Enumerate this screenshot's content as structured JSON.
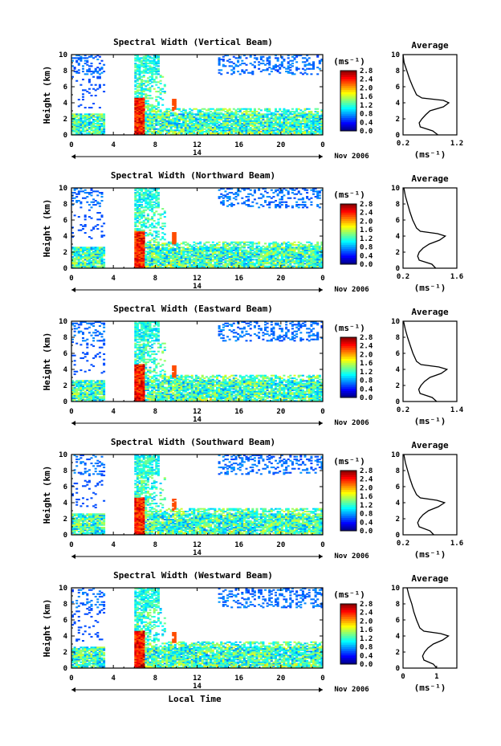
{
  "chart_data": [
    {
      "type": "heatmap",
      "title": "Spectral Width (Vertical Beam)",
      "ylabel": "Height (km)",
      "xlabel": "",
      "x_ticks": [
        "0",
        "4",
        "8",
        "12",
        "16",
        "20",
        "0"
      ],
      "y_ticks": [
        "0",
        "2",
        "4",
        "6",
        "8",
        "10"
      ],
      "xlim": [
        0,
        24
      ],
      "ylim": [
        0,
        10
      ],
      "day_label": "14",
      "date_label": "Nov 2006",
      "colorbar": {
        "unit": "(ms⁻¹)",
        "ticks": [
          "2.8",
          "2.4",
          "2.0",
          "1.6",
          "1.2",
          "0.8",
          "0.4",
          "0.0"
        ],
        "range": [
          0,
          2.8
        ]
      },
      "average": {
        "title": "Average",
        "unit": "(ms⁻¹)",
        "x_ticks": [
          "0.2",
          "1.2"
        ],
        "xlim": [
          0.2,
          1.2
        ],
        "profile": [
          [
            0.0,
            0.85
          ],
          [
            0.5,
            0.75
          ],
          [
            1.0,
            0.52
          ],
          [
            1.5,
            0.5
          ],
          [
            2.0,
            0.55
          ],
          [
            2.5,
            0.62
          ],
          [
            3.0,
            0.7
          ],
          [
            3.5,
            0.95
          ],
          [
            4.0,
            1.05
          ],
          [
            4.3,
            0.95
          ],
          [
            4.6,
            0.55
          ],
          [
            5.0,
            0.45
          ],
          [
            6.0,
            0.38
          ],
          [
            7.0,
            0.32
          ],
          [
            8.0,
            0.27
          ],
          [
            9.0,
            0.22
          ],
          [
            10.0,
            0.2
          ]
        ]
      }
    },
    {
      "type": "heatmap",
      "title": "Spectral Width (Northward Beam)",
      "ylabel": "Height (km)",
      "xlabel": "",
      "x_ticks": [
        "0",
        "4",
        "8",
        "12",
        "16",
        "20",
        "0"
      ],
      "y_ticks": [
        "0",
        "2",
        "4",
        "6",
        "8",
        "10"
      ],
      "xlim": [
        0,
        24
      ],
      "ylim": [
        0,
        10
      ],
      "day_label": "14",
      "date_label": "Nov 2006",
      "colorbar": {
        "unit": "(ms⁻¹)",
        "ticks": [
          "2.8",
          "2.4",
          "2.0",
          "1.6",
          "1.2",
          "0.8",
          "0.4",
          "0.0"
        ],
        "range": [
          0,
          2.8
        ]
      },
      "average": {
        "title": "Average",
        "unit": "(ms⁻¹)",
        "x_ticks": [
          "0.2",
          "1.6"
        ],
        "xlim": [
          0.2,
          1.6
        ],
        "profile": [
          [
            0.0,
            1.05
          ],
          [
            0.5,
            0.95
          ],
          [
            1.0,
            0.62
          ],
          [
            1.5,
            0.58
          ],
          [
            2.0,
            0.62
          ],
          [
            2.5,
            0.72
          ],
          [
            3.0,
            0.88
          ],
          [
            3.5,
            1.15
          ],
          [
            4.0,
            1.3
          ],
          [
            4.3,
            1.1
          ],
          [
            4.6,
            0.65
          ],
          [
            5.0,
            0.55
          ],
          [
            6.0,
            0.45
          ],
          [
            7.0,
            0.38
          ],
          [
            8.0,
            0.32
          ],
          [
            9.0,
            0.26
          ],
          [
            10.0,
            0.22
          ]
        ]
      }
    },
    {
      "type": "heatmap",
      "title": "Spectral Width (Eastward Beam)",
      "ylabel": "Height (km)",
      "xlabel": "",
      "x_ticks": [
        "0",
        "4",
        "8",
        "12",
        "16",
        "20",
        "0"
      ],
      "y_ticks": [
        "0",
        "2",
        "4",
        "6",
        "8",
        "10"
      ],
      "xlim": [
        0,
        24
      ],
      "ylim": [
        0,
        10
      ],
      "day_label": "14",
      "date_label": "Nov 2006",
      "colorbar": {
        "unit": "(ms⁻¹)",
        "ticks": [
          "2.8",
          "2.4",
          "2.0",
          "1.6",
          "1.2",
          "0.8",
          "0.4",
          "0.0"
        ],
        "range": [
          0,
          2.8
        ]
      },
      "average": {
        "title": "Average",
        "unit": "(ms⁻¹)",
        "x_ticks": [
          "0.2",
          "1.4"
        ],
        "xlim": [
          0.2,
          1.4
        ],
        "profile": [
          [
            0.0,
            0.95
          ],
          [
            0.5,
            0.85
          ],
          [
            1.0,
            0.58
          ],
          [
            1.5,
            0.55
          ],
          [
            2.0,
            0.6
          ],
          [
            2.5,
            0.68
          ],
          [
            3.0,
            0.8
          ],
          [
            3.5,
            1.05
          ],
          [
            4.0,
            1.18
          ],
          [
            4.3,
            1.0
          ],
          [
            4.6,
            0.6
          ],
          [
            5.0,
            0.5
          ],
          [
            6.0,
            0.42
          ],
          [
            7.0,
            0.36
          ],
          [
            8.0,
            0.3
          ],
          [
            9.0,
            0.25
          ],
          [
            10.0,
            0.21
          ]
        ]
      }
    },
    {
      "type": "heatmap",
      "title": "Spectral Width (Southward Beam)",
      "ylabel": "Height (km)",
      "xlabel": "",
      "x_ticks": [
        "0",
        "4",
        "8",
        "12",
        "16",
        "20",
        "0"
      ],
      "y_ticks": [
        "0",
        "2",
        "4",
        "6",
        "8",
        "10"
      ],
      "xlim": [
        0,
        24
      ],
      "ylim": [
        0,
        10
      ],
      "day_label": "14",
      "date_label": "Nov 2006",
      "colorbar": {
        "unit": "(ms⁻¹)",
        "ticks": [
          "2.8",
          "2.4",
          "2.0",
          "1.6",
          "1.2",
          "0.8",
          "0.4",
          "0.0"
        ],
        "range": [
          0,
          2.8
        ]
      },
      "average": {
        "title": "Average",
        "unit": "(ms⁻¹)",
        "x_ticks": [
          "0.2",
          "1.6"
        ],
        "xlim": [
          0.2,
          1.6
        ],
        "profile": [
          [
            0.0,
            1.0
          ],
          [
            0.5,
            0.9
          ],
          [
            1.0,
            0.62
          ],
          [
            1.5,
            0.58
          ],
          [
            2.0,
            0.63
          ],
          [
            2.5,
            0.72
          ],
          [
            3.0,
            0.86
          ],
          [
            3.5,
            1.12
          ],
          [
            4.0,
            1.28
          ],
          [
            4.3,
            1.08
          ],
          [
            4.6,
            0.65
          ],
          [
            5.0,
            0.55
          ],
          [
            6.0,
            0.45
          ],
          [
            7.0,
            0.38
          ],
          [
            8.0,
            0.32
          ],
          [
            9.0,
            0.26
          ],
          [
            10.0,
            0.22
          ]
        ]
      }
    },
    {
      "type": "heatmap",
      "title": "Spectral Width (Westward Beam)",
      "ylabel": "Height (km)",
      "xlabel": "Local Time",
      "x_ticks": [
        "0",
        "4",
        "8",
        "12",
        "16",
        "20",
        "0"
      ],
      "y_ticks": [
        "0",
        "2",
        "4",
        "6",
        "8",
        "10"
      ],
      "xlim": [
        0,
        24
      ],
      "ylim": [
        0,
        10
      ],
      "day_label": "14",
      "date_label": "Nov 2006",
      "colorbar": {
        "unit": "(ms⁻¹)",
        "ticks": [
          "2.8",
          "2.4",
          "2.0",
          "1.6",
          "1.2",
          "0.8",
          "0.4",
          "0.0"
        ],
        "range": [
          0,
          2.8
        ]
      },
      "average": {
        "title": "Average",
        "unit": "(ms⁻¹)",
        "x_ticks": [
          "0",
          "1"
        ],
        "xlim": [
          0,
          1.6
        ],
        "profile": [
          [
            0.0,
            1.0
          ],
          [
            0.5,
            0.9
          ],
          [
            1.0,
            0.62
          ],
          [
            1.5,
            0.58
          ],
          [
            2.0,
            0.64
          ],
          [
            2.5,
            0.74
          ],
          [
            3.0,
            0.9
          ],
          [
            3.5,
            1.18
          ],
          [
            4.0,
            1.35
          ],
          [
            4.3,
            1.12
          ],
          [
            4.6,
            0.62
          ],
          [
            5.0,
            0.5
          ],
          [
            6.0,
            0.4
          ],
          [
            7.0,
            0.32
          ],
          [
            8.0,
            0.26
          ],
          [
            9.0,
            0.18
          ],
          [
            10.0,
            0.12
          ]
        ]
      }
    }
  ]
}
